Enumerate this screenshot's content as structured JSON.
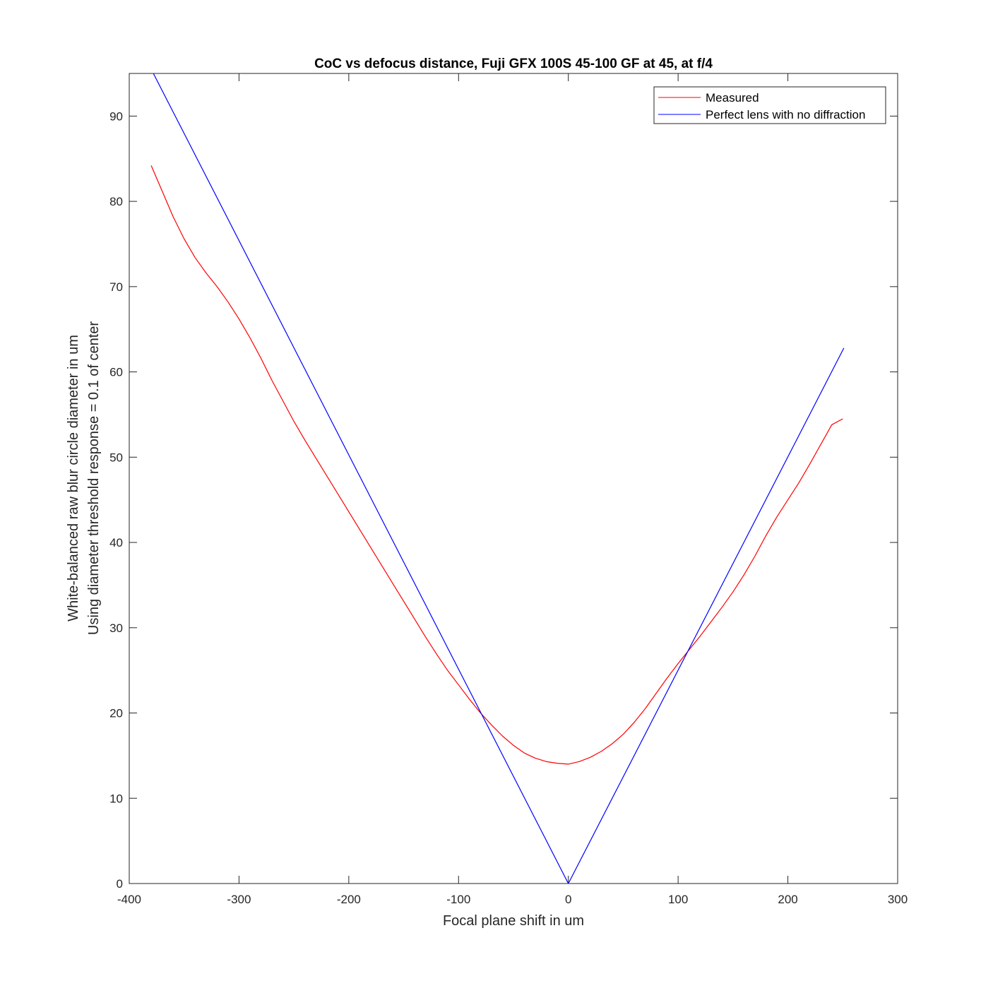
{
  "chart_data": {
    "type": "line",
    "title": "CoC vs defocus distance, Fuji GFX 100S 45-100 GF at 45, at f/4",
    "xlabel": "Focal plane shift in um",
    "ylabel_lines": [
      "White-balanced raw blur circle diameter in um",
      "Using diameter threshold response = 0.1 of center"
    ],
    "xlim": [
      -400,
      300
    ],
    "ylim": [
      0,
      95
    ],
    "xticks": [
      -400,
      -300,
      -200,
      -100,
      0,
      100,
      200,
      300
    ],
    "yticks": [
      0,
      10,
      20,
      30,
      40,
      50,
      60,
      70,
      80,
      90
    ],
    "xtick_labels": [
      "-400",
      "-300",
      "-200",
      "-100",
      "0",
      "100",
      "200",
      "300"
    ],
    "ytick_labels": [
      "0",
      "10",
      "20",
      "30",
      "40",
      "50",
      "60",
      "70",
      "80",
      "90"
    ],
    "grid": false,
    "legend_position": "top-right",
    "series": [
      {
        "name": "Measured",
        "color": "#ff0000",
        "x": [
          -380,
          -370,
          -360,
          -350,
          -340,
          -330,
          -320,
          -310,
          -300,
          -290,
          -280,
          -270,
          -260,
          -250,
          -240,
          -230,
          -220,
          -210,
          -200,
          -190,
          -180,
          -170,
          -160,
          -150,
          -140,
          -130,
          -120,
          -110,
          -100,
          -90,
          -80,
          -70,
          -60,
          -50,
          -40,
          -30,
          -20,
          -10,
          0,
          10,
          20,
          30,
          40,
          50,
          60,
          70,
          80,
          90,
          100,
          110,
          120,
          130,
          140,
          150,
          160,
          170,
          180,
          190,
          200,
          210,
          220,
          230,
          240,
          250
        ],
        "y": [
          84.2,
          81.2,
          78.2,
          75.6,
          73.4,
          71.6,
          70.0,
          68.2,
          66.2,
          64.0,
          61.6,
          59.0,
          56.6,
          54.2,
          52.0,
          49.9,
          47.8,
          45.7,
          43.6,
          41.5,
          39.4,
          37.3,
          35.2,
          33.1,
          31.0,
          28.9,
          26.9,
          25.0,
          23.3,
          21.6,
          20.0,
          18.6,
          17.3,
          16.2,
          15.3,
          14.7,
          14.3,
          14.1,
          14.0,
          14.3,
          14.8,
          15.5,
          16.4,
          17.5,
          18.9,
          20.5,
          22.3,
          24.1,
          25.8,
          27.4,
          29.0,
          30.7,
          32.4,
          34.2,
          36.2,
          38.4,
          40.8,
          43.0,
          45.0,
          47.0,
          49.2,
          51.5,
          53.8,
          54.5
        ]
      },
      {
        "name": "Perfect lens with no diffraction",
        "color": "#0000ff",
        "x": [
          -378,
          0,
          251
        ],
        "y": [
          95,
          0,
          62.8
        ]
      }
    ]
  }
}
